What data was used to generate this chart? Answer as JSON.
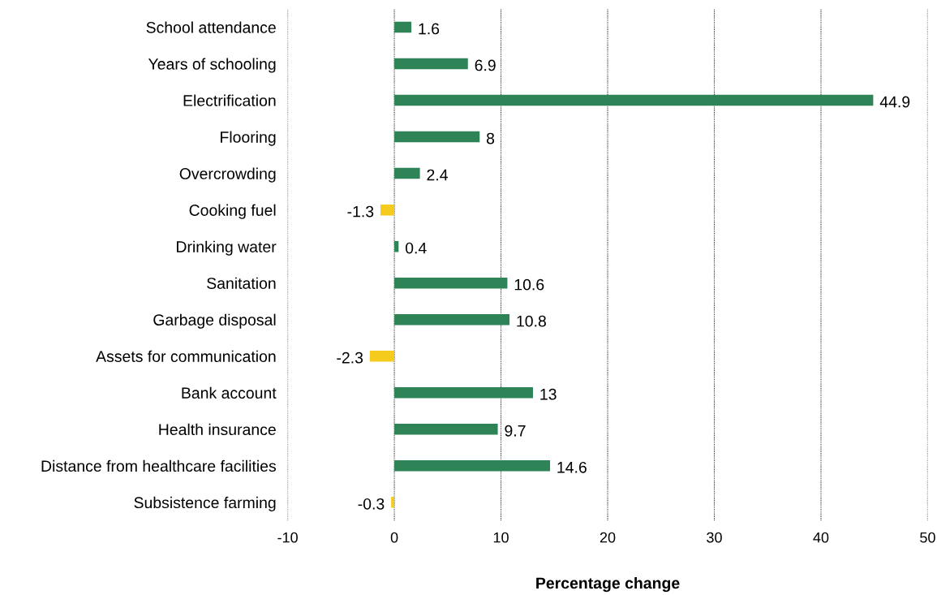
{
  "chart_data": {
    "type": "bar",
    "orientation": "horizontal",
    "xlabel": "Percentage change",
    "categories": [
      "School attendance",
      "Years of schooling",
      "Electrification",
      "Flooring",
      "Overcrowding",
      "Cooking fuel",
      "Drinking water",
      "Sanitation",
      "Garbage disposal",
      "Assets for communication",
      "Bank account",
      "Health insurance",
      "Distance from healthcare facilities",
      "Subsistence farming"
    ],
    "values": [
      1.6,
      6.9,
      44.9,
      8,
      2.4,
      -1.3,
      0.4,
      10.6,
      10.8,
      -2.3,
      13,
      9.7,
      14.6,
      -0.3
    ],
    "colors": [
      "#2e8456",
      "#2e8456",
      "#2e8456",
      "#2e8456",
      "#2e8456",
      "#f5cc1e",
      "#2e8456",
      "#2e8456",
      "#2e8456",
      "#f5cc1e",
      "#2e8456",
      "#2e8456",
      "#2e8456",
      "#f5cc1e"
    ],
    "xlim": [
      -10,
      50
    ],
    "xticks": [
      -10,
      0,
      10,
      20,
      30,
      40,
      50
    ],
    "grid": "x",
    "data_labels": true
  }
}
